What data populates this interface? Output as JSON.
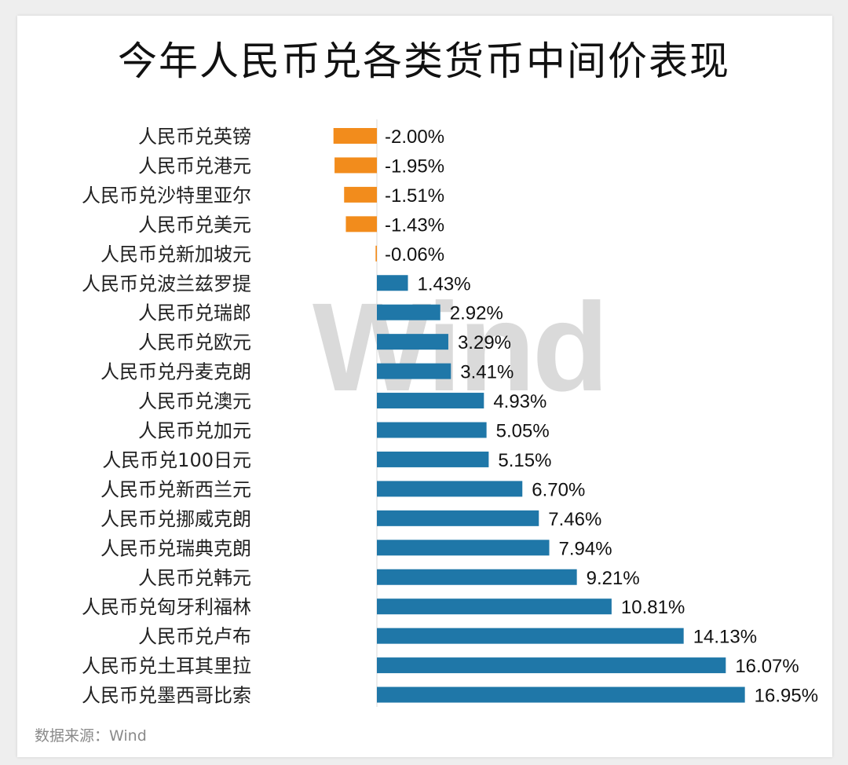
{
  "title": "今年人民币兑各类货币中间价表现",
  "source": "数据来源：Wind",
  "watermark": "Wind",
  "colors": {
    "negative": "#f28c1c",
    "positive": "#1f77a8"
  },
  "chart_data": {
    "type": "bar",
    "orientation": "horizontal",
    "title": "今年人民币兑各类货币中间价表现",
    "categories": [
      "人民币兑英镑",
      "人民币兑港元",
      "人民币兑沙特里亚尔",
      "人民币兑美元",
      "人民币兑新加坡元",
      "人民币兑波兰兹罗提",
      "人民币兑瑞郎",
      "人民币兑欧元",
      "人民币兑丹麦克朗",
      "人民币兑澳元",
      "人民币兑加元",
      "人民币兑100日元",
      "人民币兑新西兰元",
      "人民币兑挪威克朗",
      "人民币兑瑞典克朗",
      "人民币兑韩元",
      "人民币兑匈牙利福林",
      "人民币兑卢布",
      "人民币兑土耳其里拉",
      "人民币兑墨西哥比索"
    ],
    "values": [
      -2.0,
      -1.95,
      -1.51,
      -1.43,
      -0.06,
      1.43,
      2.92,
      3.29,
      3.41,
      4.93,
      5.05,
      5.15,
      6.7,
      7.46,
      7.94,
      9.21,
      10.81,
      14.13,
      16.07,
      16.95
    ],
    "labels": [
      "-2.00%",
      "-1.95%",
      "-1.51%",
      "-1.43%",
      "-0.06%",
      "1.43%",
      "2.92%",
      "3.29%",
      "3.41%",
      "4.93%",
      "5.05%",
      "5.15%",
      "6.70%",
      "7.46%",
      "7.94%",
      "9.21%",
      "10.81%",
      "14.13%",
      "16.07%",
      "16.95%"
    ],
    "unit": "%",
    "grid": false,
    "legend": "none"
  }
}
